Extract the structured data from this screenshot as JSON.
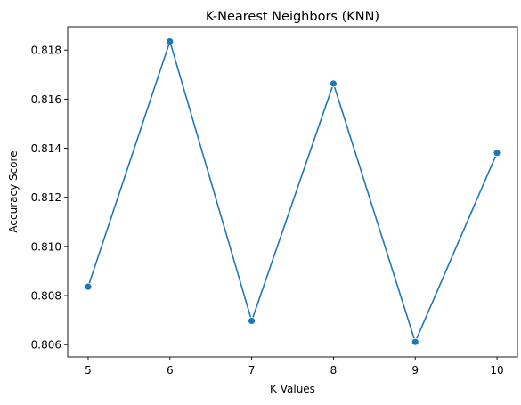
{
  "chart_data": {
    "type": "line",
    "title": "K-Nearest Neighbors (KNN)",
    "xlabel": "K Values",
    "ylabel": "Accuracy Score",
    "x": [
      5,
      6,
      7,
      8,
      9,
      10
    ],
    "series": [
      {
        "values": [
          0.80836,
          0.81835,
          0.80697,
          0.81663,
          0.80611,
          0.81381
        ],
        "color": "#1f77b4"
      }
    ],
    "xticks": [
      "5",
      "6",
      "7",
      "8",
      "9",
      "10"
    ],
    "yticks": [
      "0.806",
      "0.808",
      "0.810",
      "0.812",
      "0.814",
      "0.816",
      "0.818"
    ],
    "xlim": [
      4.75,
      10.25
    ],
    "ylim": [
      0.8055,
      0.81895
    ],
    "grid": false,
    "marker": "circle"
  }
}
